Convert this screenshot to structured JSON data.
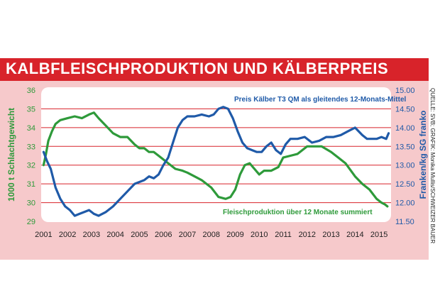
{
  "title": "KALBFLEISCHPRODUKTION UND KÄLBERPREIS",
  "source_text": "QUELLE: SVB; GRAFIK: Monika Mullis/SCHWEIZER BAUER",
  "colors": {
    "title_bg": "#d8232a",
    "panel_bg": "#f6c9cb",
    "plot_bg": "#ffffff",
    "green": "#2e9a3a",
    "blue": "#1f5aa8",
    "grid": "#d8232a"
  },
  "chart_data": {
    "type": "line",
    "x_ticks": [
      "2001",
      "2002",
      "2003",
      "2004",
      "2005",
      "2006",
      "2007",
      "2008",
      "2009",
      "2010",
      "2011",
      "2012",
      "2013",
      "2014",
      "2015"
    ],
    "xlim": [
      2000.9,
      2015.5
    ],
    "y_left": {
      "label": "1000 t Schlachtgewicht",
      "ticks": [
        "29",
        "30",
        "31",
        "32",
        "33",
        "34",
        "35",
        "36"
      ],
      "lim": [
        29,
        36
      ]
    },
    "y_right": {
      "label": "Franken/kg SG franko",
      "ticks": [
        "11.50",
        "12.00",
        "12.50",
        "13.00",
        "13.50",
        "14.00",
        "14.50",
        "15.00"
      ],
      "lim": [
        11.5,
        15.0
      ]
    },
    "grid": true,
    "series": [
      {
        "name": "Fleischproduktion über 12 Monate summiert",
        "axis": "left",
        "x": [
          2001.0,
          2001.1,
          2001.2,
          2001.35,
          2001.5,
          2001.7,
          2002.0,
          2002.3,
          2002.6,
          2002.9,
          2003.1,
          2003.3,
          2003.6,
          2003.9,
          2004.2,
          2004.5,
          2004.8,
          2005.0,
          2005.2,
          2005.4,
          2005.6,
          2005.8,
          2006.0,
          2006.2,
          2006.5,
          2006.8,
          2007.0,
          2007.3,
          2007.6,
          2008.0,
          2008.3,
          2008.6,
          2008.8,
          2009.0,
          2009.2,
          2009.4,
          2009.6,
          2009.8,
          2010.0,
          2010.2,
          2010.5,
          2010.8,
          2011.0,
          2011.3,
          2011.6,
          2012.0,
          2012.3,
          2012.6,
          2013.0,
          2013.3,
          2013.6,
          2014.0,
          2014.3,
          2014.6,
          2014.9,
          2015.1,
          2015.25,
          2015.35
        ],
        "values": [
          32.0,
          32.6,
          33.3,
          33.8,
          34.2,
          34.4,
          34.5,
          34.6,
          34.5,
          34.7,
          34.8,
          34.5,
          34.1,
          33.7,
          33.5,
          33.5,
          33.1,
          32.9,
          32.9,
          32.7,
          32.7,
          32.5,
          32.3,
          32.1,
          31.8,
          31.7,
          31.6,
          31.4,
          31.2,
          30.8,
          30.3,
          30.2,
          30.3,
          30.7,
          31.5,
          32.0,
          32.1,
          31.8,
          31.5,
          31.7,
          31.7,
          31.9,
          32.4,
          32.5,
          32.6,
          33.0,
          33.0,
          33.0,
          32.7,
          32.4,
          32.1,
          31.4,
          31.0,
          30.7,
          30.2,
          30.0,
          29.9,
          29.8
        ]
      },
      {
        "name": "Preis Kälber T3 QM als gleitendes 12-Monats-Mittel",
        "axis": "right",
        "x": [
          2001.0,
          2001.15,
          2001.3,
          2001.5,
          2001.7,
          2001.9,
          2002.1,
          2002.3,
          2002.5,
          2002.7,
          2002.9,
          2003.1,
          2003.3,
          2003.6,
          2003.9,
          2004.2,
          2004.5,
          2004.8,
          2005.0,
          2005.2,
          2005.4,
          2005.6,
          2005.8,
          2006.0,
          2006.2,
          2006.4,
          2006.6,
          2006.8,
          2007.0,
          2007.3,
          2007.6,
          2007.9,
          2008.1,
          2008.3,
          2008.5,
          2008.7,
          2008.9,
          2009.1,
          2009.3,
          2009.5,
          2009.7,
          2009.9,
          2010.1,
          2010.3,
          2010.5,
          2010.7,
          2010.9,
          2011.1,
          2011.3,
          2011.6,
          2011.9,
          2012.2,
          2012.5,
          2012.8,
          2013.1,
          2013.4,
          2013.7,
          2014.0,
          2014.3,
          2014.5,
          2014.7,
          2014.9,
          2015.1,
          2015.3,
          2015.4
        ],
        "values": [
          13.35,
          13.1,
          12.9,
          12.4,
          12.1,
          11.9,
          11.8,
          11.65,
          11.7,
          11.75,
          11.8,
          11.7,
          11.65,
          11.75,
          11.9,
          12.1,
          12.3,
          12.5,
          12.55,
          12.6,
          12.7,
          12.65,
          12.75,
          13.0,
          13.2,
          13.6,
          14.0,
          14.2,
          14.3,
          14.3,
          14.35,
          14.3,
          14.35,
          14.5,
          14.55,
          14.5,
          14.25,
          13.9,
          13.6,
          13.45,
          13.4,
          13.35,
          13.35,
          13.5,
          13.6,
          13.4,
          13.3,
          13.55,
          13.7,
          13.7,
          13.75,
          13.6,
          13.65,
          13.75,
          13.75,
          13.8,
          13.9,
          14.0,
          13.8,
          13.7,
          13.7,
          13.7,
          13.75,
          13.7,
          13.85
        ]
      }
    ]
  },
  "annotations": {
    "blue_label": "Preis Kälber T3 QM als gleitendes 12-Monats-Mittel",
    "green_label": "Fleischproduktion über 12 Monate summiert"
  }
}
